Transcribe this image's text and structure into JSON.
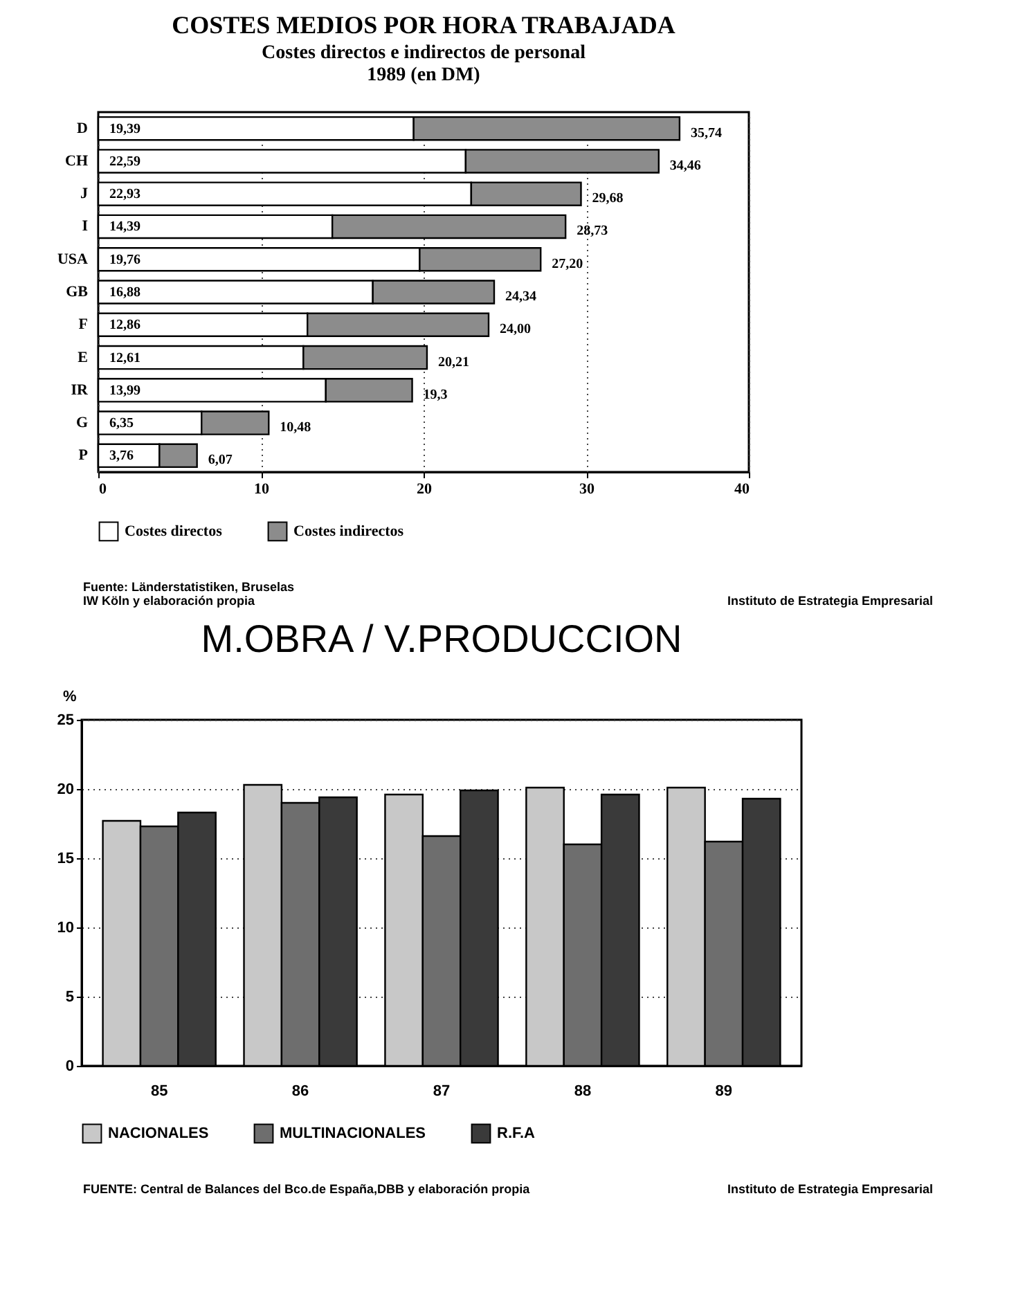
{
  "chart_data": [
    {
      "type": "bar",
      "orientation": "horizontal",
      "stacked": true,
      "title": "COSTES MEDIOS POR HORA TRABAJADA",
      "subtitle": "Costes directos e indirectos de personal\n1989 (en DM)",
      "categories": [
        "D",
        "CH",
        "J",
        "I",
        "USA",
        "GB",
        "F",
        "E",
        "IR",
        "G",
        "P"
      ],
      "series": [
        {
          "name": "Costes directos",
          "color": "#ffffff",
          "values": [
            19.39,
            22.59,
            22.93,
            14.39,
            19.76,
            16.88,
            12.86,
            12.61,
            13.99,
            6.35,
            3.76
          ],
          "value_labels": [
            "19,39",
            "22,59",
            "22,93",
            "14,39",
            "19,76",
            "16,88",
            "12,86",
            "12,61",
            "13,99",
            "6,35",
            "3,76"
          ]
        },
        {
          "name": "Costes indirectos",
          "color": "#8c8c8c",
          "values": [
            16.35,
            11.87,
            6.75,
            14.34,
            7.44,
            7.46,
            11.14,
            7.6,
            5.31,
            4.13,
            2.31
          ]
        }
      ],
      "totals": [
        "35,74",
        "34,46",
        "29,68",
        "28,73",
        "27,20",
        "24,34",
        "24,00",
        "20,21",
        "19,3",
        "10,48",
        "6,07"
      ],
      "xlim": [
        0,
        40
      ],
      "xticks": [
        0,
        10,
        20,
        30,
        40
      ],
      "grid": "x",
      "legend": "bottom",
      "annotations": [
        "Fuente: Länderstatistiken, Bruselas\nIW Köln y elaboración propia",
        "Instituto de Estrategia Empresarial"
      ]
    },
    {
      "type": "bar",
      "title": "M.OBRA / V.PRODUCCION",
      "ylabel": "%",
      "categories": [
        "85",
        "86",
        "87",
        "88",
        "89"
      ],
      "series": [
        {
          "name": "NACIONALES",
          "color": "#c8c8c8",
          "values": [
            17.7,
            20.3,
            19.6,
            20.1,
            20.1
          ]
        },
        {
          "name": "MULTINACIONALES",
          "color": "#6e6e6e",
          "values": [
            17.3,
            19.0,
            16.6,
            16.0,
            16.2
          ]
        },
        {
          "name": "R.F.A",
          "color": "#3a3a3a",
          "values": [
            18.3,
            19.4,
            19.9,
            19.6,
            19.3
          ]
        }
      ],
      "ylim": [
        0,
        25
      ],
      "yticks": [
        0,
        5,
        10,
        15,
        20,
        25
      ],
      "grid": "y",
      "legend": "bottom",
      "annotations": [
        "FUENTE: Central de Balances del Bco.de España,DBB y elaboración propia",
        "Instituto de Estrategia Empresarial"
      ]
    }
  ]
}
